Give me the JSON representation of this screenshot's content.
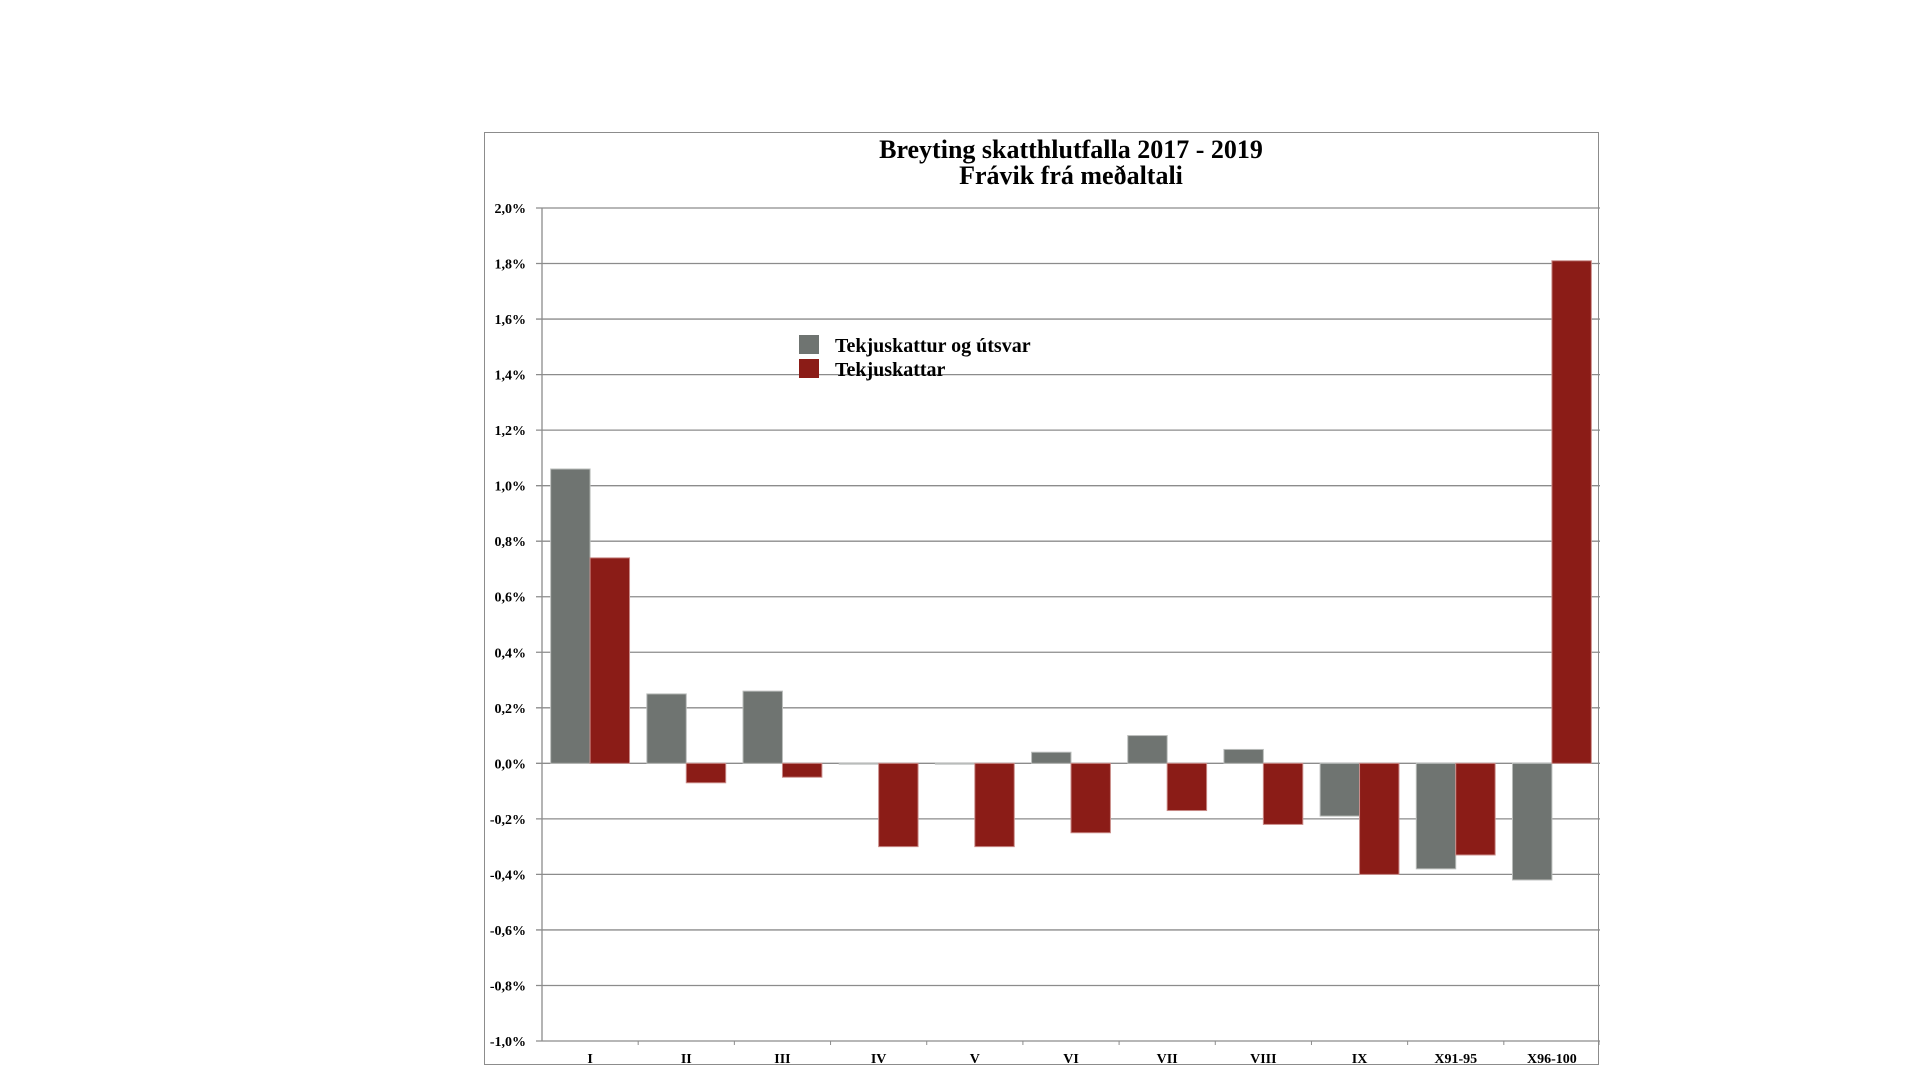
{
  "chart_data": {
    "type": "bar",
    "title": "Breyting skatthlutfalla 2017 - 2019",
    "subtitle": "Frávik frá meðaltali",
    "xlabel": "",
    "ylabel": "",
    "categories": [
      "I",
      "II",
      "III",
      "IV",
      "V",
      "VI",
      "VII",
      "VIII",
      "IX",
      "X91-95",
      "X96-100"
    ],
    "series": [
      {
        "name": "Tekjuskattur og útsvar",
        "color": "#6f7471",
        "values": [
          1.06,
          0.25,
          0.26,
          0.0,
          0.0,
          0.04,
          0.1,
          0.05,
          -0.19,
          -0.38,
          -0.42
        ]
      },
      {
        "name": "Tekjuskattar",
        "color": "#8b1c17",
        "values": [
          0.74,
          -0.07,
          -0.05,
          -0.3,
          -0.3,
          -0.25,
          -0.17,
          -0.22,
          -0.4,
          -0.33,
          1.81
        ]
      }
    ],
    "ylim": [
      -1.0,
      2.0
    ],
    "ytick_step": 0.2,
    "ytick_labels": [
      "-1,0%",
      "-0,8%",
      "-0,6%",
      "-0,4%",
      "-0,2%",
      "0,0%",
      "0,2%",
      "0,4%",
      "0,6%",
      "0,8%",
      "1,0%",
      "1,2%",
      "1,4%",
      "1,6%",
      "1,8%",
      "2,0%"
    ],
    "value_unit": "%",
    "grid": true,
    "legend_position": "upper-left-center"
  }
}
